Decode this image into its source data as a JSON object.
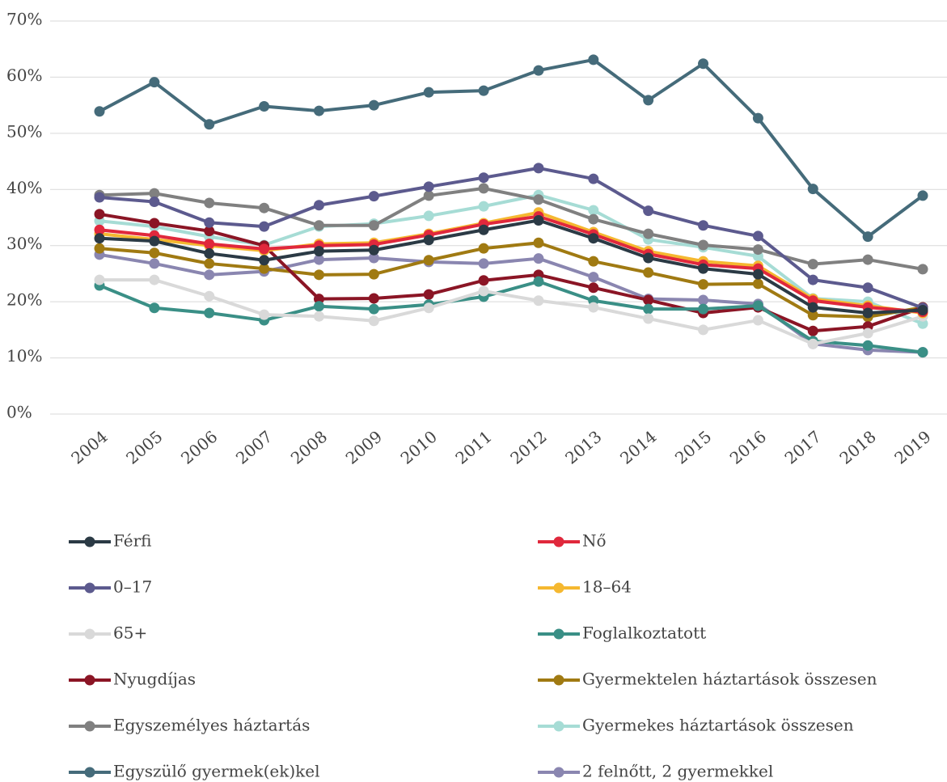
{
  "chart_data": {
    "type": "line",
    "categories": [
      "2004",
      "2005",
      "2006",
      "2007",
      "2008",
      "2009",
      "2010",
      "2011",
      "2012",
      "2013",
      "2014",
      "2015",
      "2016",
      "2017",
      "2018",
      "2019"
    ],
    "ylim": [
      0,
      70
    ],
    "yticks": [
      {
        "value": 0,
        "label": "0%"
      },
      {
        "value": 10,
        "label": "10%"
      },
      {
        "value": 20,
        "label": "20%"
      },
      {
        "value": 30,
        "label": "30%"
      },
      {
        "value": 40,
        "label": "40%"
      },
      {
        "value": 50,
        "label": "50%"
      },
      {
        "value": 60,
        "label": "60%"
      },
      {
        "value": 70,
        "label": "70%"
      }
    ],
    "grid": true,
    "series": [
      {
        "name": "Férfi",
        "color": "#2b3a45",
        "values": [
          31.3,
          30.8,
          28.6,
          27.4,
          29.0,
          29.2,
          31.0,
          32.8,
          34.5,
          31.3,
          27.8,
          25.9,
          24.9,
          19.0,
          18.0,
          18.5
        ]
      },
      {
        "name": "Nő",
        "color": "#e0283c",
        "values": [
          32.8,
          31.8,
          30.3,
          29.4,
          30.0,
          30.2,
          31.9,
          33.8,
          35.2,
          32.0,
          28.5,
          26.6,
          25.9,
          20.2,
          19.0,
          18.2
        ]
      },
      {
        "name": "0–17",
        "color": "#5c5a8e",
        "values": [
          38.6,
          37.8,
          34.1,
          33.4,
          37.2,
          38.8,
          40.5,
          42.1,
          43.8,
          41.9,
          36.2,
          33.6,
          31.7,
          23.9,
          22.5,
          18.9
        ]
      },
      {
        "name": "18–64",
        "color": "#f5b830",
        "values": [
          32.1,
          31.1,
          30.0,
          29.1,
          30.3,
          30.5,
          32.1,
          34.0,
          35.9,
          32.4,
          29.0,
          27.2,
          26.4,
          20.5,
          19.3,
          18.0
        ]
      },
      {
        "name": "65+",
        "color": "#d9d9d9",
        "values": [
          23.9,
          23.9,
          21.0,
          17.7,
          17.4,
          16.6,
          18.9,
          21.9,
          20.2,
          19.0,
          17.0,
          15.0,
          16.7,
          12.5,
          14.4,
          17.4
        ]
      },
      {
        "name": "Foglalkoztatott",
        "color": "#3a8f86",
        "values": [
          22.9,
          18.9,
          18.0,
          16.7,
          19.2,
          18.7,
          19.5,
          20.9,
          23.6,
          20.2,
          18.7,
          18.7,
          19.3,
          13.0,
          12.2,
          11.0
        ]
      },
      {
        "name": "Nyugdíjas",
        "color": "#8b1525",
        "values": [
          35.6,
          34.0,
          32.6,
          30.0,
          20.5,
          20.6,
          21.3,
          23.8,
          24.8,
          22.5,
          20.3,
          18.0,
          19.0,
          14.8,
          15.6,
          19.0
        ]
      },
      {
        "name": "Gyermektelen háztartások összesen",
        "color": "#a07a12",
        "values": [
          29.5,
          28.7,
          26.8,
          25.9,
          24.8,
          24.9,
          27.4,
          29.5,
          30.5,
          27.2,
          25.2,
          23.1,
          23.2,
          17.6,
          17.3,
          19.0
        ]
      },
      {
        "name": "Egyszemélyes háztartás",
        "color": "#808080",
        "values": [
          39.0,
          39.3,
          37.6,
          36.7,
          33.6,
          33.6,
          38.9,
          40.2,
          38.2,
          34.7,
          32.1,
          30.1,
          29.3,
          26.7,
          27.5,
          25.8
        ]
      },
      {
        "name": "Gyermekes háztartások összesen",
        "color": "#a6dcd5",
        "values": [
          34.4,
          33.4,
          31.6,
          30.1,
          33.4,
          33.9,
          35.3,
          37.0,
          39.0,
          36.3,
          31.1,
          29.7,
          28.1,
          20.6,
          20.0,
          16.1
        ]
      },
      {
        "name": "Egyszülő gyermek(ek)kel",
        "color": "#456b7a",
        "values": [
          53.9,
          59.1,
          51.6,
          54.8,
          54.0,
          55.0,
          57.3,
          57.6,
          61.2,
          63.1,
          55.9,
          62.4,
          52.7,
          40.1,
          31.6,
          38.9
        ]
      },
      {
        "name": "2 felnőtt, 2 gyermekkel",
        "color": "#8a86b0",
        "values": [
          28.4,
          26.8,
          24.8,
          25.4,
          27.5,
          27.8,
          27.1,
          26.8,
          27.7,
          24.4,
          20.5,
          20.3,
          19.6,
          12.5,
          11.4,
          11.0
        ]
      }
    ]
  }
}
